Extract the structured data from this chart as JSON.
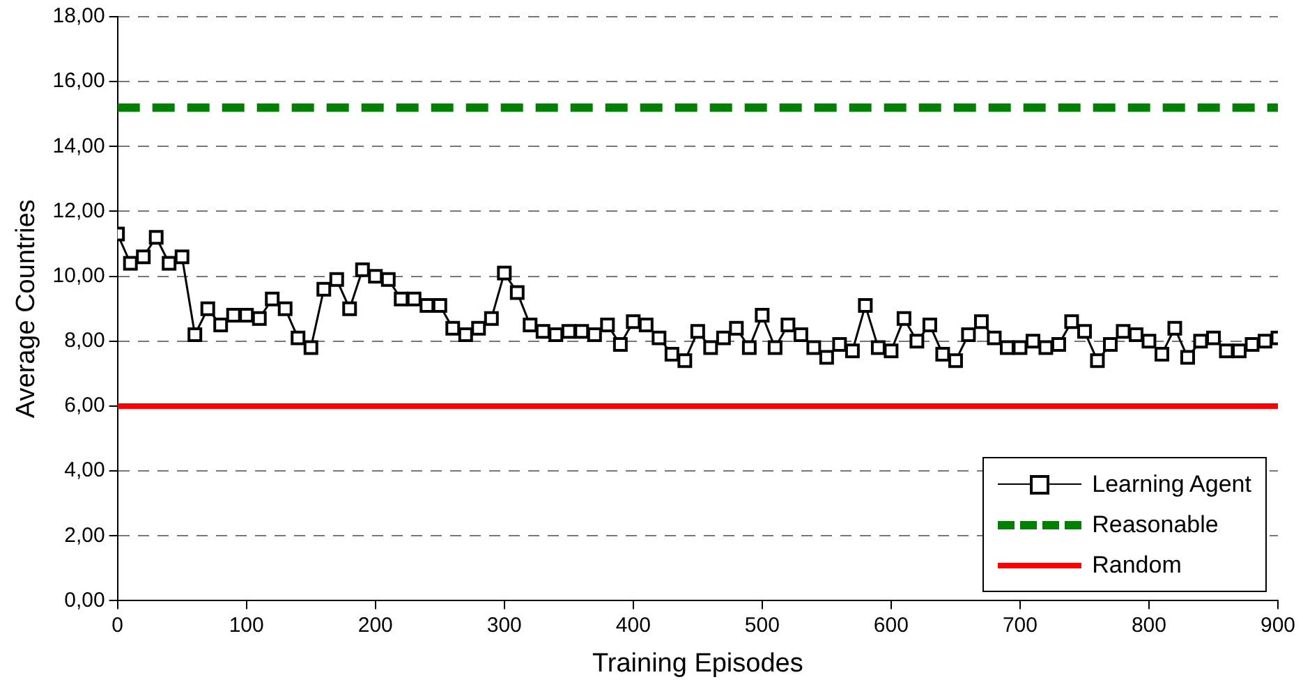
{
  "chart_data": {
    "type": "line",
    "xlabel": "Training Episodes",
    "ylabel": "Average Countries",
    "xlim": [
      0,
      900
    ],
    "xticks": [
      0,
      100,
      200,
      300,
      400,
      500,
      600,
      700,
      800,
      900
    ],
    "ylim": [
      0,
      18
    ],
    "yticks": [
      {
        "value": 0,
        "label": "0,00"
      },
      {
        "value": 2,
        "label": "2,00"
      },
      {
        "value": 4,
        "label": "4,00"
      },
      {
        "value": 6,
        "label": "6,00"
      },
      {
        "value": 8,
        "label": "8,00"
      },
      {
        "value": 10,
        "label": "10,00"
      },
      {
        "value": 12,
        "label": "12,00"
      },
      {
        "value": 14,
        "label": "14,00"
      },
      {
        "value": 16,
        "label": "16,00"
      },
      {
        "value": 18,
        "label": "18,00"
      }
    ],
    "grid": "y",
    "legend": "bottom right",
    "series": [
      {
        "name": "Learning Agent",
        "color": "#000000",
        "marker": "square",
        "line_style": "solid",
        "x": [
          0,
          10,
          20,
          30,
          40,
          50,
          60,
          70,
          80,
          90,
          100,
          110,
          120,
          130,
          140,
          150,
          160,
          170,
          180,
          190,
          200,
          210,
          220,
          230,
          240,
          250,
          260,
          270,
          280,
          290,
          300,
          310,
          320,
          330,
          340,
          350,
          360,
          370,
          380,
          390,
          400,
          410,
          420,
          430,
          440,
          450,
          460,
          470,
          480,
          490,
          500,
          510,
          520,
          530,
          540,
          550,
          560,
          570,
          580,
          590,
          600,
          610,
          620,
          630,
          640,
          650,
          660,
          670,
          680,
          690,
          700,
          710,
          720,
          730,
          740,
          750,
          760,
          770,
          780,
          790,
          800,
          810,
          820,
          830,
          840,
          850,
          860,
          870,
          880,
          890,
          900
        ],
        "values": [
          11.3,
          10.4,
          10.6,
          11.2,
          10.4,
          10.6,
          8.2,
          9.0,
          8.5,
          8.8,
          8.8,
          8.7,
          9.3,
          9.0,
          8.1,
          7.8,
          9.6,
          9.9,
          9.0,
          10.2,
          10.0,
          9.9,
          9.3,
          9.3,
          9.1,
          9.1,
          8.4,
          8.2,
          8.4,
          8.7,
          10.1,
          9.5,
          8.5,
          8.3,
          8.2,
          8.3,
          8.3,
          8.2,
          8.5,
          7.9,
          8.6,
          8.5,
          8.1,
          7.6,
          7.4,
          8.3,
          7.8,
          8.1,
          8.4,
          7.8,
          8.8,
          7.8,
          8.5,
          8.2,
          7.8,
          7.5,
          7.9,
          7.7,
          9.1,
          7.8,
          7.7,
          8.7,
          8.0,
          8.5,
          7.6,
          7.4,
          8.2,
          8.6,
          8.1,
          7.8,
          7.8,
          8.0,
          7.8,
          7.9,
          8.6,
          8.3,
          7.4,
          7.9,
          8.3,
          8.2,
          8.0,
          7.6,
          8.4,
          7.5,
          8.0,
          8.1,
          7.7,
          7.7,
          7.9,
          8.0,
          8.1
        ]
      },
      {
        "name": "Reasonable",
        "color": "#008000",
        "marker": "none",
        "line_style": "dashed",
        "x": [
          0,
          900
        ],
        "values": [
          15.2,
          15.2
        ]
      },
      {
        "name": "Random",
        "color": "#ff0000",
        "marker": "none",
        "line_style": "solid",
        "x": [
          0,
          900
        ],
        "values": [
          6,
          6
        ]
      }
    ]
  }
}
